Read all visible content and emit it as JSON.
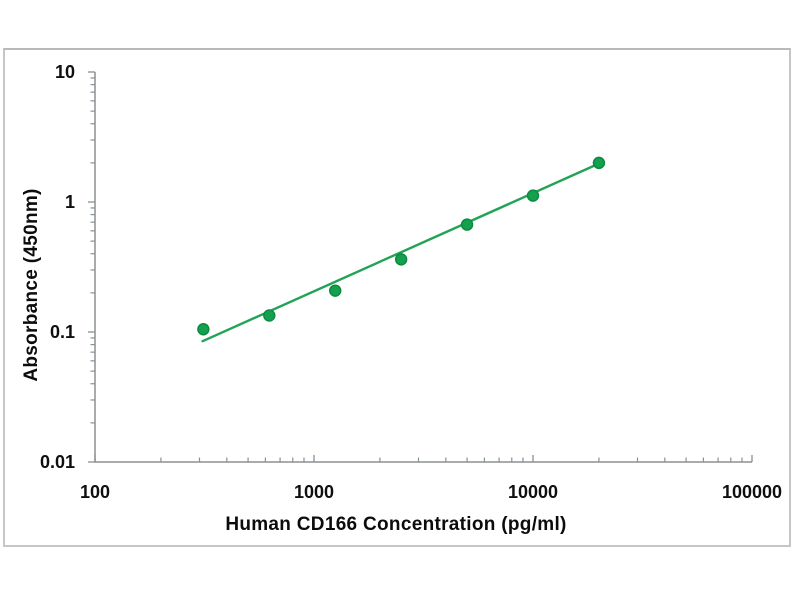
{
  "chart_data": {
    "type": "scatter",
    "title": "",
    "xlabel": "Human CD166 Concentration (pg/ml)",
    "ylabel": "Absorbance (450nm)",
    "x_scale": "log",
    "y_scale": "log",
    "xlim": [
      100,
      100000
    ],
    "ylim": [
      0.01,
      10
    ],
    "x_ticks": [
      100,
      1000,
      10000,
      100000
    ],
    "x_tick_labels": [
      "100",
      "1000",
      "10000",
      "100000"
    ],
    "y_ticks": [
      0.01,
      0.1,
      1,
      10
    ],
    "y_tick_labels": [
      "0.01",
      "0.1",
      "1",
      "10"
    ],
    "grid": false,
    "legend": false,
    "axis_color": "#8b9093",
    "series": [
      {
        "name": "standard-curve-points",
        "marker": "circle",
        "marker_color": "#14a04e",
        "marker_edge_color": "#0b8a3e",
        "x": [
          312.5,
          625,
          1250,
          2500,
          5000,
          10000,
          20000
        ],
        "y": [
          0.105,
          0.134,
          0.208,
          0.362,
          0.67,
          1.12,
          2.0
        ]
      }
    ],
    "trendline": {
      "color": "#22a356",
      "x": [
        310,
        19800
      ],
      "y": [
        0.085,
        1.96
      ]
    }
  }
}
